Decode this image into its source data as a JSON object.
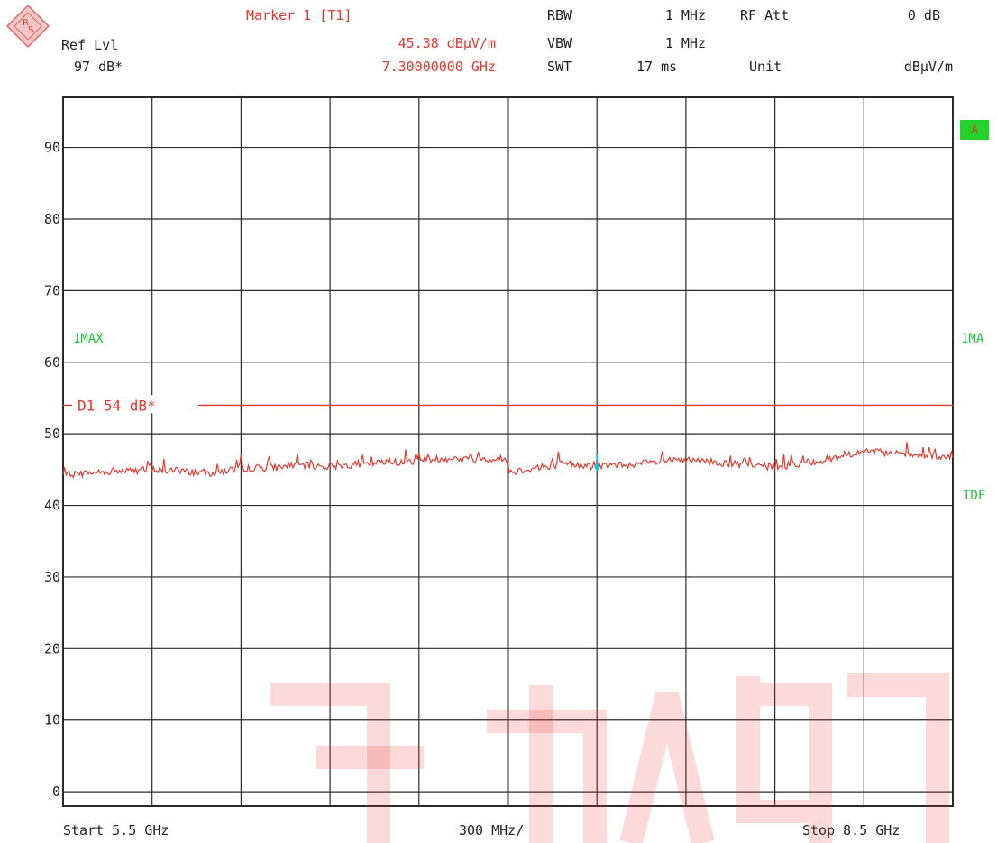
{
  "header": {
    "ref_lvl_label": "Ref Lvl",
    "ref_lvl_value": "97 dB*",
    "marker_title": "Marker 1 [T1]",
    "marker_level": "45.38 dBµV/m",
    "marker_freq": "7.30000000 GHz",
    "rbw_label": "RBW",
    "rbw_value": "1 MHz",
    "vbw_label": "VBW",
    "vbw_value": "1 MHz",
    "swt_label": "SWT",
    "swt_value": "17 ms",
    "rfatt_label": "RF Att",
    "rfatt_value": "0 dB",
    "unit_label": "Unit",
    "unit_value": "dBµV/m"
  },
  "footer": {
    "start": "Start 5.5 GHz",
    "span": "300 MHz/",
    "stop": "Stop 8.5 GHz"
  },
  "side": {
    "badge": "A",
    "left_trace": "1MAX",
    "right_trace": "1MA",
    "right_tdf": "TDF"
  },
  "colors": {
    "trace": "#e0392e",
    "limit": "#e0392e",
    "marker": "#19c0d6",
    "grid": "#2a2a2a",
    "label_green": "#22c23a",
    "badge": "#22d32a"
  },
  "chart_data": {
    "type": "line",
    "x_unit": "GHz",
    "y_unit": "dBµV/m",
    "xlim": [
      5.5,
      8.5
    ],
    "ylim": [
      -2,
      97
    ],
    "y_ticks": [
      0,
      10,
      20,
      30,
      40,
      50,
      60,
      70,
      80,
      90
    ],
    "y_tick_labels": [
      "0",
      "10",
      "20",
      "30",
      "40",
      "50",
      "60",
      "70",
      "80",
      "90"
    ],
    "grid": true,
    "limit_line": {
      "label": "D1 54 dB*",
      "value": 54
    },
    "marker": {
      "x": 7.3,
      "y": 45.38
    },
    "series": [
      {
        "x": [
          5.5,
          5.6,
          5.7,
          5.8,
          5.9,
          6.0,
          6.1,
          6.2,
          6.3,
          6.4,
          6.5,
          6.6,
          6.7,
          6.8,
          6.9,
          7.0,
          7.001,
          7.1,
          7.2,
          7.3,
          7.4,
          7.5,
          7.6,
          7.7,
          7.8,
          7.9,
          8.0,
          8.1,
          8.2,
          8.3,
          8.4,
          8.5
        ],
        "y": [
          44.2,
          44.6,
          44.8,
          45.0,
          44.8,
          44.5,
          45.2,
          45.3,
          45.6,
          45.4,
          45.8,
          46.0,
          46.3,
          46.6,
          46.4,
          46.5,
          44.6,
          45.3,
          45.8,
          45.4,
          45.7,
          46.0,
          46.3,
          46.0,
          45.6,
          45.4,
          45.9,
          46.6,
          47.6,
          47.2,
          46.9,
          46.6
        ]
      }
    ]
  }
}
